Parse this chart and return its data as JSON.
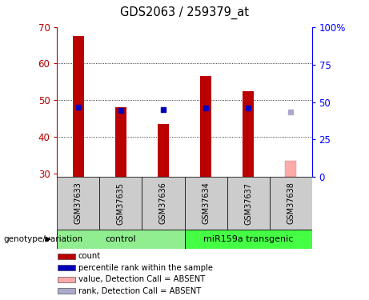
{
  "title": "GDS2063 / 259379_at",
  "samples": [
    "GSM37633",
    "GSM37635",
    "GSM37636",
    "GSM37634",
    "GSM37637",
    "GSM37638"
  ],
  "count_values": [
    67.5,
    48.0,
    43.5,
    56.5,
    52.5,
    null
  ],
  "rank_values_pct": [
    46.5,
    44.5,
    44.8,
    46.0,
    46.0,
    null
  ],
  "absent_value": 33.5,
  "absent_rank_pct": 43.5,
  "absent_sample_idx": 5,
  "ylim": [
    29,
    70
  ],
  "y2lim": [
    0,
    100
  ],
  "yticks": [
    30,
    40,
    50,
    60,
    70
  ],
  "y2ticks": [
    0,
    25,
    50,
    75,
    100
  ],
  "y2ticklabels": [
    "0",
    "25",
    "50",
    "75",
    "100%"
  ],
  "count_color": "#BB0000",
  "rank_color": "#0000BB",
  "absent_count_color": "#FFAAAA",
  "absent_rank_color": "#AAAACC",
  "ctrl_color": "#90EE90",
  "tg_color": "#44FF44",
  "label_area_color": "#CCCCCC",
  "legend_items": [
    {
      "label": "count",
      "color": "#BB0000"
    },
    {
      "label": "percentile rank within the sample",
      "color": "#0000BB"
    },
    {
      "label": "value, Detection Call = ABSENT",
      "color": "#FFAAAA"
    },
    {
      "label": "rank, Detection Call = ABSENT",
      "color": "#AAAACC"
    }
  ]
}
